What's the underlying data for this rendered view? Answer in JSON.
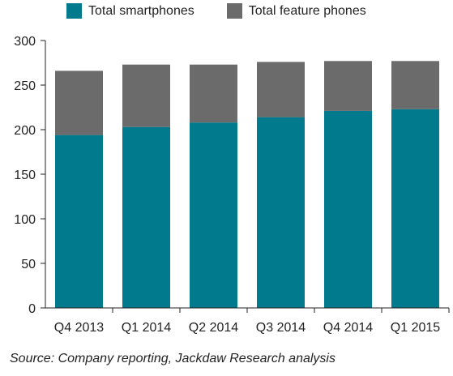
{
  "chart_data": {
    "type": "bar",
    "stacked": true,
    "categories": [
      "Q4 2013",
      "Q1 2014",
      "Q2 2014",
      "Q3 2014",
      "Q4 2014",
      "Q1 2015"
    ],
    "series": [
      {
        "name": "Total smartphones",
        "color": "#007a8c",
        "values": [
          194,
          203,
          208,
          214,
          221,
          223
        ]
      },
      {
        "name": "Total feature phones",
        "color": "#6b6b6b",
        "values": [
          72,
          70,
          65,
          62,
          56,
          54
        ]
      }
    ],
    "ylim": [
      0,
      300
    ],
    "yticks": [
      "0",
      "50",
      "100",
      "150",
      "200",
      "250",
      "300"
    ],
    "grid": false,
    "legend": "top"
  },
  "source": "Source: Company reporting, Jackdaw Research analysis"
}
